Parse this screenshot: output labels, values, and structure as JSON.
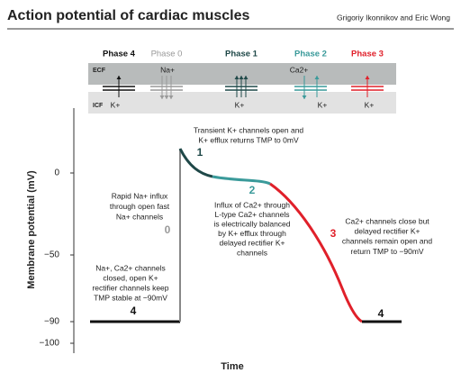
{
  "header": {
    "title": "Action potential of cardiac muscles",
    "authors": "Grigoriy Ikonnikov and Eric Wong"
  },
  "phases": [
    "Phase 4",
    "Phase 0",
    "Phase 1",
    "Phase 2",
    "Phase 3"
  ],
  "membrane": {
    "ecf": "ECF",
    "icf": "ICF",
    "top_ions": [
      "Na+",
      "Ca2+"
    ],
    "bottom_ions": [
      "K+",
      "K+",
      "K+",
      "K+"
    ]
  },
  "axis": {
    "y_label": "Membrane potential (mV)",
    "y_ticks": [
      "0",
      "−50",
      "−90",
      "−100"
    ],
    "x_label": "Time"
  },
  "annotations": {
    "phase1_note": [
      "Transient K+ channels open and",
      "K+ efflux returns TMP to 0mV"
    ],
    "phase0_note": [
      "Rapid Na+ influx",
      "through open fast",
      "Na+ channels"
    ],
    "phase2_note": [
      "Influx of Ca2+ through",
      "L-type Ca2+ channels",
      "is electrically balanced",
      "by K+ efflux through",
      "delayed rectifier K+",
      "channels"
    ],
    "phase3_note": [
      "Ca2+ channels close but",
      "delayed rectifier K+",
      "channels remain open and",
      "return TMP to −90mV"
    ],
    "phase4_note": [
      "Na+, Ca2+ channels",
      "closed, open K+",
      "rectifier channels keep",
      "TMP stable at −90mV"
    ],
    "numbers": [
      "4",
      "0",
      "1",
      "2",
      "3",
      "4"
    ]
  }
}
